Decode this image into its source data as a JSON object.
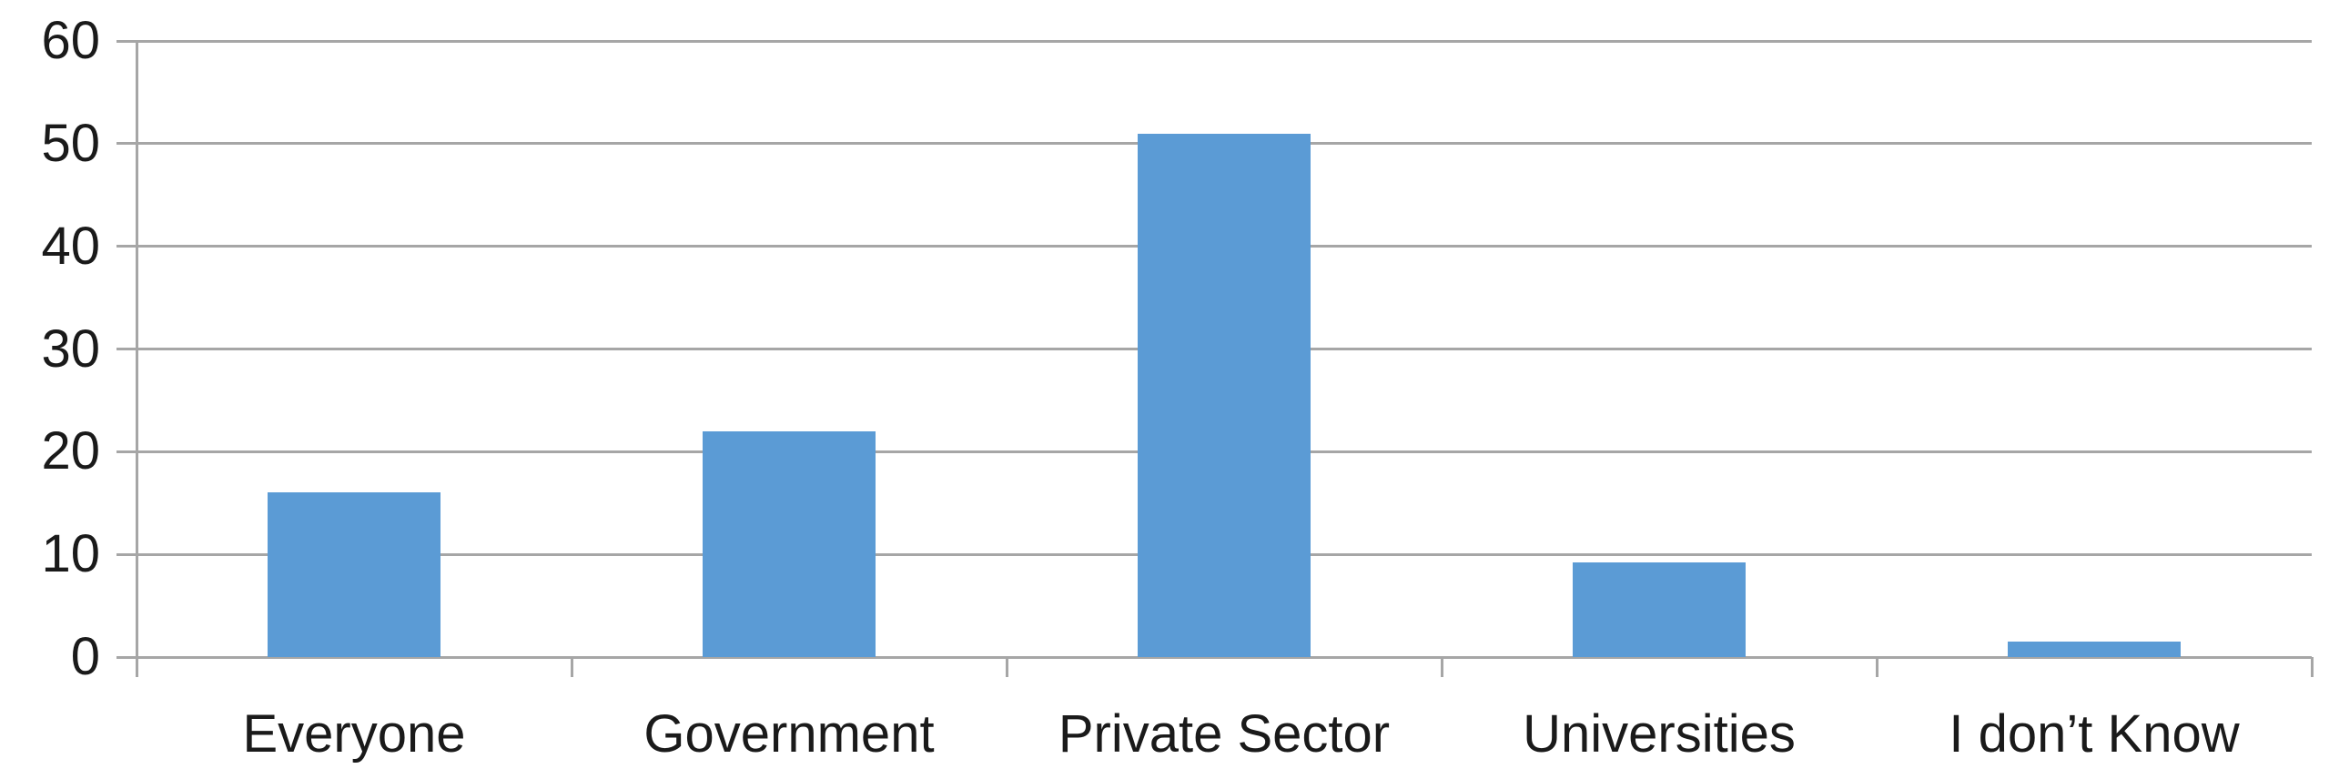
{
  "chart_data": {
    "type": "bar",
    "title": "",
    "xlabel": "",
    "ylabel": "",
    "categories": [
      "Everyone",
      "Government",
      "Private Sector",
      "Universities",
      "I don’t Know"
    ],
    "values": [
      16,
      22,
      51,
      9.2,
      1.5
    ],
    "series_name": "",
    "ylim": [
      0,
      60
    ],
    "yticks": [
      0,
      10,
      20,
      30,
      40,
      50,
      60
    ],
    "grid": true,
    "legend_position": "none",
    "colors": {
      "bar": "#5B9BD5",
      "gridline": "#A6A6A6",
      "axis": "#A6A6A6",
      "text": "#1A1A1A",
      "background": "#FFFFFF"
    }
  }
}
